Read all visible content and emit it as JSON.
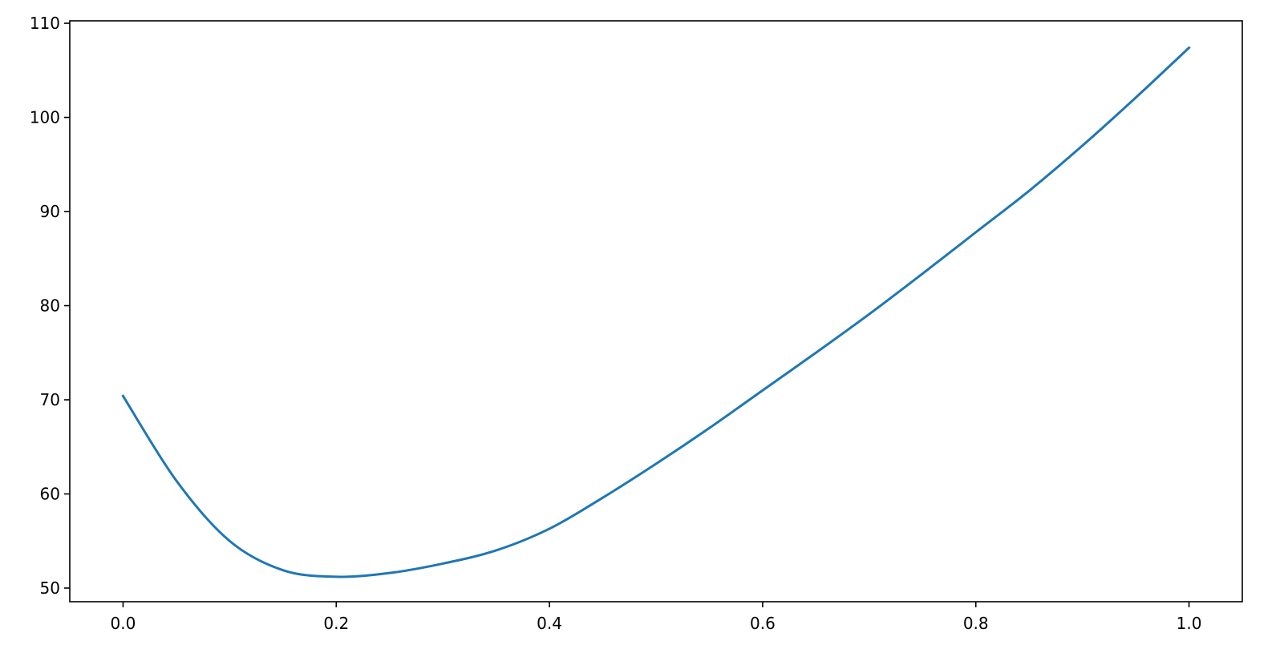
{
  "chart_data": {
    "type": "line",
    "title": "",
    "xlabel": "",
    "ylabel": "",
    "xlim": [
      -0.05,
      1.05
    ],
    "ylim": [
      48.55,
      110.26
    ],
    "grid": false,
    "x_ticks": [
      "0.0",
      "0.2",
      "0.4",
      "0.6",
      "0.8",
      "1.0"
    ],
    "y_ticks": [
      "50",
      "60",
      "70",
      "80",
      "90",
      "100",
      "110"
    ],
    "series": [
      {
        "color": "#1f77b4",
        "x": [
          0,
          0.05,
          0.1,
          0.15,
          0.2,
          0.25,
          0.3,
          0.35,
          0.4,
          0.45,
          0.5,
          0.55,
          0.6,
          0.65,
          0.7,
          0.75,
          0.8,
          0.85,
          0.9,
          0.95,
          1.0
        ],
        "y": [
          70.4,
          61.4,
          55.0,
          51.9,
          51.2,
          51.6,
          52.6,
          54.0,
          56.3,
          59.6,
          63.2,
          67.0,
          71.0,
          75.0,
          79.1,
          83.4,
          87.8,
          92.2,
          97.0,
          102.1,
          107.4
        ]
      }
    ]
  }
}
